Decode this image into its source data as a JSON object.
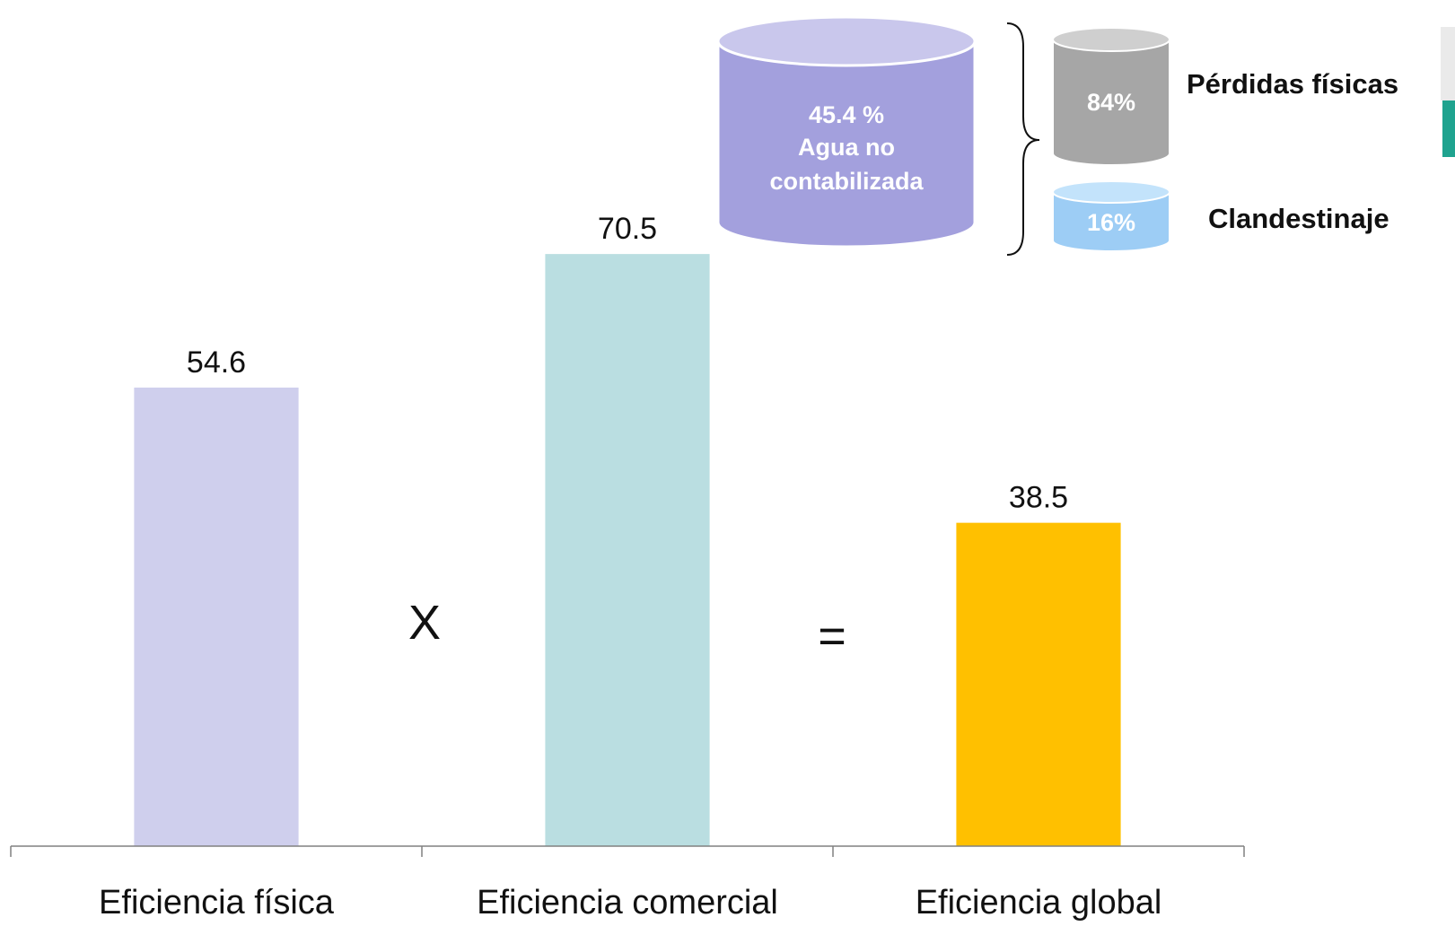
{
  "chart_data": {
    "type": "bar",
    "categories": [
      "Eficiencia física",
      "Eficiencia comercial",
      "Eficiencia global"
    ],
    "values": [
      54.6,
      70.5,
      38.5
    ],
    "value_labels": [
      "54.6",
      "70.5",
      "38.5"
    ],
    "colors": [
      "#cfcfed",
      "#badee1",
      "#ffc000"
    ],
    "ylim": [
      0,
      100
    ],
    "grid": false,
    "operators": [
      "X",
      "="
    ],
    "title": "",
    "xlabel": "",
    "ylabel": ""
  },
  "breakdown": {
    "main": {
      "percent": "45.4 %",
      "line2": "Agua no",
      "line3": "contabilizada",
      "color": "#a3a0dd"
    },
    "parts": [
      {
        "percent": "84%",
        "label": "Pérdidas físicas",
        "color": "#a6a6a6"
      },
      {
        "percent": "16%",
        "label": "Clandestinaje",
        "color": "#9dcdf5"
      }
    ]
  }
}
